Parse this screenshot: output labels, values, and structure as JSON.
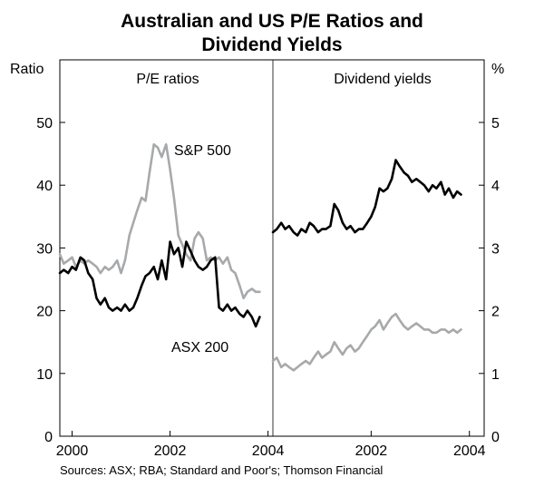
{
  "chart_data": {
    "type": "line",
    "title_line1": "Australian and US P/E Ratios and",
    "title_line2": "Dividend Yields",
    "source": "Sources: ASX; RBA; Standard and Poor's; Thomson Financial",
    "panels": [
      {
        "name": "pe",
        "subtitle": "P/E ratios",
        "axis_label": "Ratio",
        "ylim": [
          0,
          50
        ],
        "yticks": [
          "0",
          "10",
          "20",
          "30",
          "40",
          "50"
        ],
        "xlim": [
          1999.75,
          2004.1
        ],
        "xticks": [
          {
            "value": 2000,
            "label": "2000"
          },
          {
            "value": 2002,
            "label": "2002"
          },
          {
            "value": 2004,
            "label": "2004"
          }
        ],
        "series": [
          {
            "name": "S&P 500",
            "color": "#a7a9ab",
            "x": [
              1999.75,
              1999.83,
              1999.92,
              2000.0,
              2000.08,
              2000.17,
              2000.25,
              2000.33,
              2000.42,
              2000.5,
              2000.58,
              2000.67,
              2000.75,
              2000.83,
              2000.92,
              2001.0,
              2001.08,
              2001.17,
              2001.25,
              2001.33,
              2001.42,
              2001.5,
              2001.58,
              2001.67,
              2001.75,
              2001.83,
              2001.92,
              2002.0,
              2002.08,
              2002.17,
              2002.25,
              2002.33,
              2002.42,
              2002.5,
              2002.58,
              2002.67,
              2002.75,
              2002.83,
              2002.92,
              2003.0,
              2003.08,
              2003.17,
              2003.25,
              2003.33,
              2003.42,
              2003.5,
              2003.58,
              2003.67,
              2003.75,
              2003.83
            ],
            "values": [
              29,
              27.5,
              28,
              28.5,
              27,
              28,
              27.5,
              28,
              27.5,
              27,
              26,
              27,
              26.5,
              27,
              28,
              26,
              28,
              32,
              34,
              36,
              38,
              37.5,
              42,
              46.5,
              46,
              44.5,
              46.5,
              42.5,
              38,
              32,
              30.5,
              29,
              28,
              31.5,
              32.5,
              31.5,
              28,
              28.5,
              28,
              28.5,
              27.5,
              28.5,
              26.5,
              26,
              24,
              22,
              23,
              23.5,
              23,
              23
            ]
          },
          {
            "name": "ASX 200",
            "color": "#000000",
            "x": [
              1999.75,
              1999.83,
              1999.92,
              2000.0,
              2000.08,
              2000.17,
              2000.25,
              2000.33,
              2000.42,
              2000.5,
              2000.58,
              2000.67,
              2000.75,
              2000.83,
              2000.92,
              2001.0,
              2001.08,
              2001.17,
              2001.25,
              2001.33,
              2001.42,
              2001.5,
              2001.58,
              2001.67,
              2001.75,
              2001.83,
              2001.92,
              2002.0,
              2002.08,
              2002.17,
              2002.25,
              2002.33,
              2002.42,
              2002.5,
              2002.58,
              2002.67,
              2002.75,
              2002.83,
              2002.92,
              2003.0,
              2003.08,
              2003.17,
              2003.25,
              2003.33,
              2003.42,
              2003.5,
              2003.58,
              2003.67,
              2003.75,
              2003.83
            ],
            "values": [
              26,
              26.5,
              26,
              27,
              26.5,
              28.5,
              28,
              26,
              25,
              22,
              21,
              22,
              20.5,
              20,
              20.5,
              20,
              21,
              20,
              20.5,
              22,
              24,
              25.5,
              26,
              27,
              25,
              28,
              25,
              31,
              29,
              30,
              27,
              31,
              29.5,
              28,
              27,
              26.5,
              27,
              28,
              28.5,
              20.5,
              20,
              21,
              20,
              20.5,
              19.5,
              19,
              20,
              19,
              17.5,
              19
            ]
          }
        ]
      },
      {
        "name": "dy",
        "subtitle": "Dividend yields",
        "axis_label": "%",
        "ylim": [
          0,
          5
        ],
        "yticks": [
          "0",
          "1",
          "2",
          "3",
          "4",
          "5"
        ],
        "xlim": [
          2000.0,
          2004.3
        ],
        "xticks": [
          {
            "value": 2002,
            "label": "2002"
          },
          {
            "value": 2004,
            "label": "2004"
          }
        ],
        "series": [
          {
            "name": "S&P 500",
            "color": "#a7a9ab",
            "x": [
              2000.0,
              2000.08,
              2000.17,
              2000.25,
              2000.33,
              2000.42,
              2000.5,
              2000.58,
              2000.67,
              2000.75,
              2000.83,
              2000.92,
              2001.0,
              2001.08,
              2001.17,
              2001.25,
              2001.33,
              2001.42,
              2001.5,
              2001.58,
              2001.67,
              2001.75,
              2001.83,
              2001.92,
              2002.0,
              2002.08,
              2002.17,
              2002.25,
              2002.33,
              2002.42,
              2002.5,
              2002.58,
              2002.67,
              2002.75,
              2002.83,
              2002.92,
              2003.0,
              2003.08,
              2003.17,
              2003.25,
              2003.33,
              2003.42,
              2003.5,
              2003.58,
              2003.67,
              2003.75,
              2003.83
            ],
            "values": [
              1.2,
              1.25,
              1.1,
              1.15,
              1.1,
              1.05,
              1.1,
              1.15,
              1.2,
              1.15,
              1.25,
              1.35,
              1.25,
              1.3,
              1.35,
              1.5,
              1.4,
              1.3,
              1.4,
              1.45,
              1.35,
              1.4,
              1.5,
              1.6,
              1.7,
              1.75,
              1.85,
              1.7,
              1.8,
              1.9,
              1.95,
              1.85,
              1.75,
              1.7,
              1.75,
              1.8,
              1.75,
              1.7,
              1.7,
              1.65,
              1.65,
              1.7,
              1.7,
              1.65,
              1.7,
              1.65,
              1.7
            ]
          },
          {
            "name": "ASX 200",
            "color": "#000000",
            "x": [
              2000.0,
              2000.08,
              2000.17,
              2000.25,
              2000.33,
              2000.42,
              2000.5,
              2000.58,
              2000.67,
              2000.75,
              2000.83,
              2000.92,
              2001.0,
              2001.08,
              2001.17,
              2001.25,
              2001.33,
              2001.42,
              2001.5,
              2001.58,
              2001.67,
              2001.75,
              2001.83,
              2001.92,
              2002.0,
              2002.08,
              2002.17,
              2002.25,
              2002.33,
              2002.42,
              2002.5,
              2002.58,
              2002.67,
              2002.75,
              2002.83,
              2002.92,
              2003.0,
              2003.08,
              2003.17,
              2003.25,
              2003.33,
              2003.42,
              2003.5,
              2003.58,
              2003.67,
              2003.75,
              2003.83
            ],
            "values": [
              3.25,
              3.3,
              3.4,
              3.3,
              3.35,
              3.25,
              3.2,
              3.3,
              3.25,
              3.4,
              3.35,
              3.25,
              3.3,
              3.3,
              3.35,
              3.7,
              3.6,
              3.4,
              3.3,
              3.35,
              3.25,
              3.3,
              3.3,
              3.4,
              3.5,
              3.65,
              3.95,
              3.9,
              3.95,
              4.1,
              4.4,
              4.3,
              4.2,
              4.15,
              4.05,
              4.1,
              4.05,
              4.0,
              3.9,
              4.0,
              3.95,
              4.05,
              3.85,
              3.95,
              3.8,
              3.9,
              3.85
            ]
          }
        ]
      }
    ],
    "annotations": [
      {
        "text": "S&P 500",
        "panel": "pe"
      },
      {
        "text": "ASX 200",
        "panel": "pe"
      }
    ]
  }
}
